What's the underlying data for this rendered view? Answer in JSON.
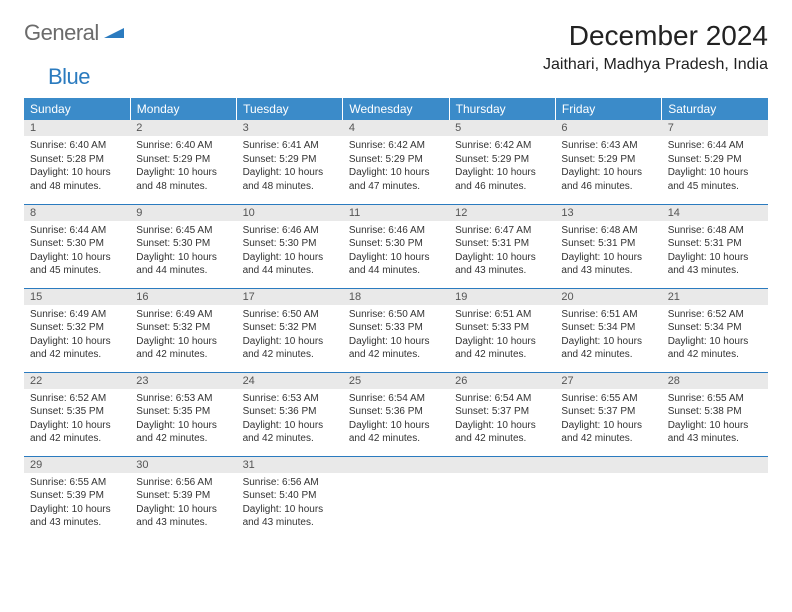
{
  "logo": {
    "gray": "General",
    "blue": "Blue"
  },
  "title": "December 2024",
  "location": "Jaithari, Madhya Pradesh, India",
  "colors": {
    "header_bg": "#3b8bc9",
    "header_text": "#ffffff",
    "daynum_bg": "#e9e9e9",
    "row_border": "#2b7bbf",
    "logo_gray": "#6b6b6b",
    "logo_blue": "#2b7bbf"
  },
  "typography": {
    "title_fontsize": 28,
    "location_fontsize": 16,
    "dayheader_fontsize": 12,
    "daynum_fontsize": 11,
    "body_fontsize": 10
  },
  "day_headers": [
    "Sunday",
    "Monday",
    "Tuesday",
    "Wednesday",
    "Thursday",
    "Friday",
    "Saturday"
  ],
  "weeks": [
    [
      {
        "n": "1",
        "sr": "6:40 AM",
        "ss": "5:28 PM",
        "dh": "10",
        "dm": "48"
      },
      {
        "n": "2",
        "sr": "6:40 AM",
        "ss": "5:29 PM",
        "dh": "10",
        "dm": "48"
      },
      {
        "n": "3",
        "sr": "6:41 AM",
        "ss": "5:29 PM",
        "dh": "10",
        "dm": "48"
      },
      {
        "n": "4",
        "sr": "6:42 AM",
        "ss": "5:29 PM",
        "dh": "10",
        "dm": "47"
      },
      {
        "n": "5",
        "sr": "6:42 AM",
        "ss": "5:29 PM",
        "dh": "10",
        "dm": "46"
      },
      {
        "n": "6",
        "sr": "6:43 AM",
        "ss": "5:29 PM",
        "dh": "10",
        "dm": "46"
      },
      {
        "n": "7",
        "sr": "6:44 AM",
        "ss": "5:29 PM",
        "dh": "10",
        "dm": "45"
      }
    ],
    [
      {
        "n": "8",
        "sr": "6:44 AM",
        "ss": "5:30 PM",
        "dh": "10",
        "dm": "45"
      },
      {
        "n": "9",
        "sr": "6:45 AM",
        "ss": "5:30 PM",
        "dh": "10",
        "dm": "44"
      },
      {
        "n": "10",
        "sr": "6:46 AM",
        "ss": "5:30 PM",
        "dh": "10",
        "dm": "44"
      },
      {
        "n": "11",
        "sr": "6:46 AM",
        "ss": "5:30 PM",
        "dh": "10",
        "dm": "44"
      },
      {
        "n": "12",
        "sr": "6:47 AM",
        "ss": "5:31 PM",
        "dh": "10",
        "dm": "43"
      },
      {
        "n": "13",
        "sr": "6:48 AM",
        "ss": "5:31 PM",
        "dh": "10",
        "dm": "43"
      },
      {
        "n": "14",
        "sr": "6:48 AM",
        "ss": "5:31 PM",
        "dh": "10",
        "dm": "43"
      }
    ],
    [
      {
        "n": "15",
        "sr": "6:49 AM",
        "ss": "5:32 PM",
        "dh": "10",
        "dm": "42"
      },
      {
        "n": "16",
        "sr": "6:49 AM",
        "ss": "5:32 PM",
        "dh": "10",
        "dm": "42"
      },
      {
        "n": "17",
        "sr": "6:50 AM",
        "ss": "5:32 PM",
        "dh": "10",
        "dm": "42"
      },
      {
        "n": "18",
        "sr": "6:50 AM",
        "ss": "5:33 PM",
        "dh": "10",
        "dm": "42"
      },
      {
        "n": "19",
        "sr": "6:51 AM",
        "ss": "5:33 PM",
        "dh": "10",
        "dm": "42"
      },
      {
        "n": "20",
        "sr": "6:51 AM",
        "ss": "5:34 PM",
        "dh": "10",
        "dm": "42"
      },
      {
        "n": "21",
        "sr": "6:52 AM",
        "ss": "5:34 PM",
        "dh": "10",
        "dm": "42"
      }
    ],
    [
      {
        "n": "22",
        "sr": "6:52 AM",
        "ss": "5:35 PM",
        "dh": "10",
        "dm": "42"
      },
      {
        "n": "23",
        "sr": "6:53 AM",
        "ss": "5:35 PM",
        "dh": "10",
        "dm": "42"
      },
      {
        "n": "24",
        "sr": "6:53 AM",
        "ss": "5:36 PM",
        "dh": "10",
        "dm": "42"
      },
      {
        "n": "25",
        "sr": "6:54 AM",
        "ss": "5:36 PM",
        "dh": "10",
        "dm": "42"
      },
      {
        "n": "26",
        "sr": "6:54 AM",
        "ss": "5:37 PM",
        "dh": "10",
        "dm": "42"
      },
      {
        "n": "27",
        "sr": "6:55 AM",
        "ss": "5:37 PM",
        "dh": "10",
        "dm": "42"
      },
      {
        "n": "28",
        "sr": "6:55 AM",
        "ss": "5:38 PM",
        "dh": "10",
        "dm": "43"
      }
    ],
    [
      {
        "n": "29",
        "sr": "6:55 AM",
        "ss": "5:39 PM",
        "dh": "10",
        "dm": "43"
      },
      {
        "n": "30",
        "sr": "6:56 AM",
        "ss": "5:39 PM",
        "dh": "10",
        "dm": "43"
      },
      {
        "n": "31",
        "sr": "6:56 AM",
        "ss": "5:40 PM",
        "dh": "10",
        "dm": "43"
      },
      null,
      null,
      null,
      null
    ]
  ],
  "labels": {
    "sunrise": "Sunrise:",
    "sunset": "Sunset:",
    "daylight": "Daylight:",
    "hours": "hours",
    "and": "and",
    "minutes": "minutes."
  }
}
